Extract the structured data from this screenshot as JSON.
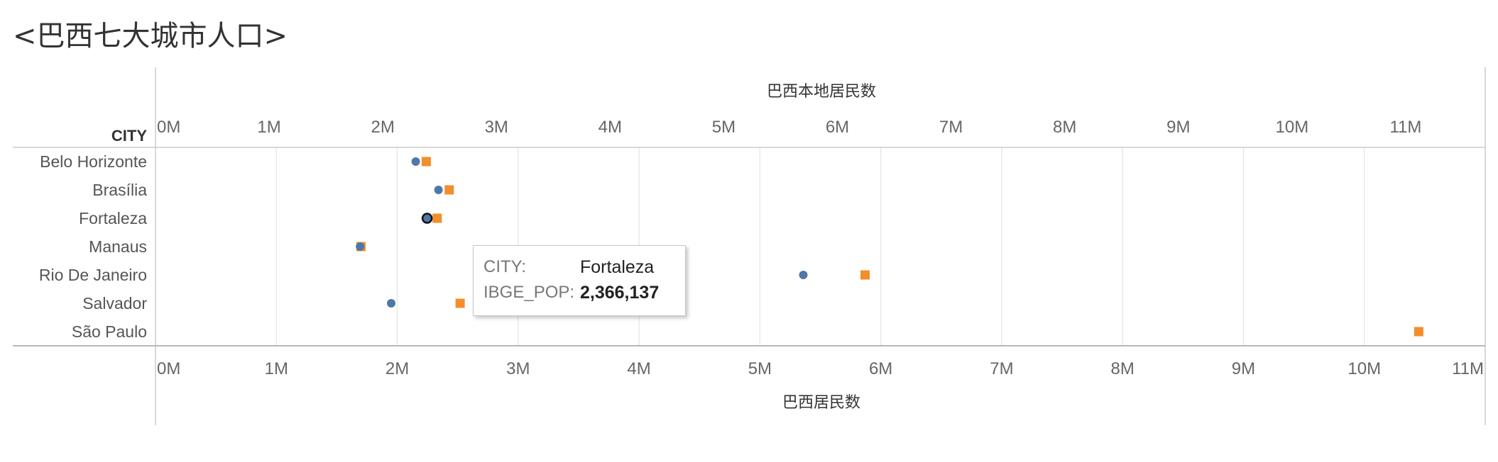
{
  "title": "<巴西七大城市人口>",
  "colors": {
    "native_pop": "#4e79a7",
    "total_pop": "#f28e2b",
    "grid": "#e6e6e6",
    "axis_line": "#cccccc"
  },
  "chart_data": {
    "type": "scatter",
    "row_header": "CITY",
    "categories": [
      "Belo Horizonte",
      "Brasília",
      "Fortaleza",
      "Manaus",
      "Rio De Janeiro",
      "Salvador",
      "São Paulo"
    ],
    "top_axis": {
      "label": "巴西本地居民数",
      "ticks": [
        "0M",
        "1M",
        "2M",
        "3M",
        "4M",
        "5M",
        "6M",
        "7M",
        "8M",
        "9M",
        "10M",
        "11M"
      ],
      "range": [
        0,
        11.7
      ]
    },
    "bottom_axis": {
      "label": "巴西居民数",
      "ticks": [
        "0M",
        "1M",
        "2M",
        "3M",
        "4M",
        "5M",
        "6M",
        "7M",
        "8M",
        "9M",
        "10M",
        "11M"
      ],
      "range": [
        0,
        11.0
      ]
    },
    "series": [
      {
        "axis": "top",
        "marker": "circle",
        "color": "#4e79a7",
        "values": [
          2.29,
          2.49,
          2.39,
          1.8,
          5.7,
          null,
          null
        ]
      },
      {
        "axis": "bottom",
        "marker": "circle",
        "color": "#4e79a7",
        "values": [
          null,
          null,
          null,
          null,
          null,
          1.95,
          null
        ]
      },
      {
        "axis": "bottom",
        "marker": "square",
        "color": "#f28e2b",
        "values": [
          2.24,
          2.43,
          2.33,
          1.7,
          5.87,
          2.52,
          10.45
        ]
      }
    ],
    "highlight": {
      "category": "Fortaleza",
      "value": 2.39
    }
  },
  "tooltip": {
    "rows": [
      {
        "key": "CITY:",
        "value": "Fortaleza"
      },
      {
        "key": "IBGE_POP:",
        "value": "2,366,137"
      }
    ]
  }
}
